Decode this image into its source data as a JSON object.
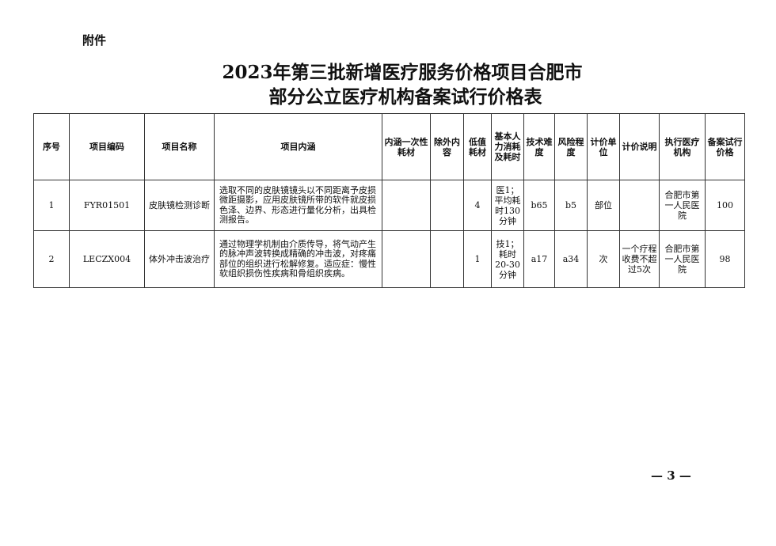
{
  "attachment_label": "附件",
  "title_line1": "2023年第三批新增医疗服务价格项目合肥市",
  "title_line2": "部分公立医疗机构备案试行价格表",
  "table": {
    "headers": [
      "序号",
      "项目编码",
      "项目名称",
      "项目内涵",
      "内涵一次性耗材",
      "除外内容",
      "低值耗材",
      "基本人力消耗及耗时",
      "技术难度",
      "风险程度",
      "计价单位",
      "计价说明",
      "执行医疗机构",
      "备案试行价格"
    ],
    "rows": [
      [
        "1",
        "FYR01501",
        "皮肤镜检测诊断",
        "选取不同的皮肤镜镜头以不同距离予皮损微距摄影，应用皮肤镜所带的软件就皮损色泽、边界、形态进行量化分析，出具检测报告。",
        "",
        "",
        "4",
        "医1；平均耗时130分钟",
        "b65",
        "b5",
        "部位",
        "",
        "合肥市第一人民医院",
        "100"
      ],
      [
        "2",
        "LECZX004",
        "体外冲击波治疗",
        "通过物理学机制由介质传导，将气动产生的脉冲声波转换成精确的冲击波，对疼痛部位的组织进行松解修复。适应症：慢性软组织损伤性疾病和骨组织疾病。",
        "",
        "",
        "1",
        "技1；耗时20-30分钟",
        "a17",
        "a34",
        "次",
        "一个疗程收费不超过5次",
        "合肥市第一人民医院",
        "98"
      ]
    ]
  },
  "page_number": "— 3 —"
}
